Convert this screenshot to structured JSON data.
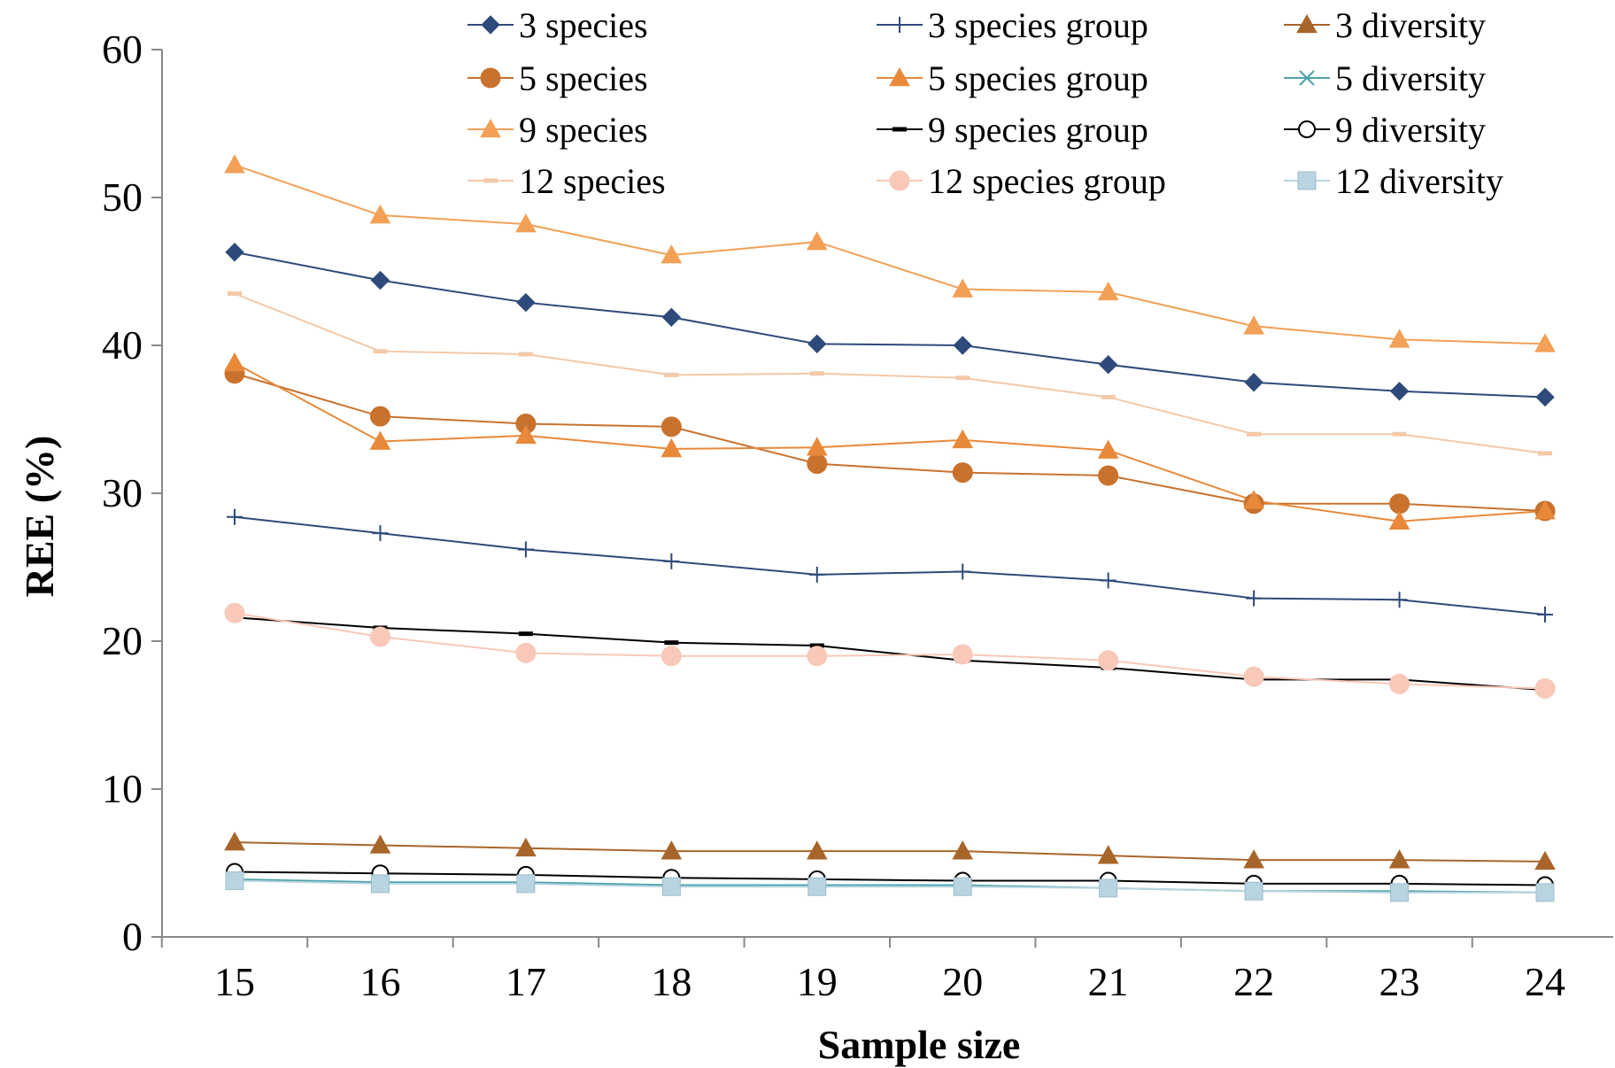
{
  "chart_data": {
    "type": "line",
    "xlabel": "Sample size",
    "ylabel": "REE (%)",
    "ylim": [
      0,
      60
    ],
    "yticks": [
      0,
      10,
      20,
      30,
      40,
      50,
      60
    ],
    "x": [
      15,
      16,
      17,
      18,
      19,
      20,
      21,
      22,
      23,
      24
    ],
    "grid": false,
    "legend_position": "top",
    "series": [
      {
        "name": "3 species",
        "color": "#2E4A7A",
        "marker": "diamond",
        "values": [
          46.3,
          44.4,
          42.9,
          41.9,
          40.1,
          40.0,
          38.7,
          37.5,
          36.9,
          36.5
        ]
      },
      {
        "name": "3 species group",
        "color": "#2E4A7A",
        "marker": "plus",
        "values": [
          28.4,
          27.3,
          26.2,
          25.4,
          24.5,
          24.7,
          24.1,
          22.9,
          22.8,
          21.8
        ]
      },
      {
        "name": "3 diversity",
        "color": "#A8652A",
        "marker": "triangle",
        "values": [
          6.4,
          6.2,
          6.0,
          5.8,
          5.8,
          5.8,
          5.5,
          5.2,
          5.2,
          5.1
        ]
      },
      {
        "name": "5 species",
        "color": "#C8722E",
        "marker": "circle",
        "values": [
          38.1,
          35.2,
          34.7,
          34.5,
          32.0,
          31.4,
          31.2,
          29.3,
          29.3,
          28.8
        ]
      },
      {
        "name": "5 species group",
        "color": "#E8893A",
        "marker": "triangle",
        "values": [
          38.8,
          33.5,
          33.9,
          33.0,
          33.1,
          33.6,
          32.9,
          29.5,
          28.1,
          28.8
        ]
      },
      {
        "name": "5 diversity",
        "color": "#4BA3A8",
        "marker": "x",
        "values": [
          3.9,
          3.7,
          3.7,
          3.5,
          3.5,
          3.5,
          3.3,
          3.1,
          3.1,
          3.0
        ]
      },
      {
        "name": "9 species",
        "color": "#F2A055",
        "marker": "triangle",
        "values": [
          52.2,
          48.8,
          48.2,
          46.1,
          47.0,
          43.8,
          43.6,
          41.3,
          40.4,
          40.1
        ]
      },
      {
        "name": "9 species group",
        "color": "#000000",
        "marker": "dash",
        "values": [
          21.6,
          20.9,
          20.5,
          19.9,
          19.7,
          18.7,
          18.2,
          17.4,
          17.4,
          16.7
        ]
      },
      {
        "name": "9 diversity",
        "color": "#000000",
        "marker": "open-circle",
        "values": [
          4.4,
          4.3,
          4.2,
          4.0,
          3.9,
          3.8,
          3.8,
          3.6,
          3.6,
          3.5
        ]
      },
      {
        "name": "12 species",
        "color": "#F3C9A8",
        "marker": "dash",
        "values": [
          43.5,
          39.6,
          39.4,
          38.0,
          38.1,
          37.8,
          36.5,
          34.0,
          34.0,
          32.7
        ]
      },
      {
        "name": "12 species group",
        "color": "#F8C8B8",
        "marker": "circle",
        "values": [
          21.9,
          20.3,
          19.2,
          19.0,
          19.0,
          19.1,
          18.7,
          17.6,
          17.1,
          16.8
        ]
      },
      {
        "name": "12 diversity",
        "color": "#B8D4E0",
        "marker": "square",
        "values": [
          3.8,
          3.6,
          3.6,
          3.4,
          3.4,
          3.4,
          3.3,
          3.1,
          3.0,
          3.0
        ]
      }
    ]
  }
}
